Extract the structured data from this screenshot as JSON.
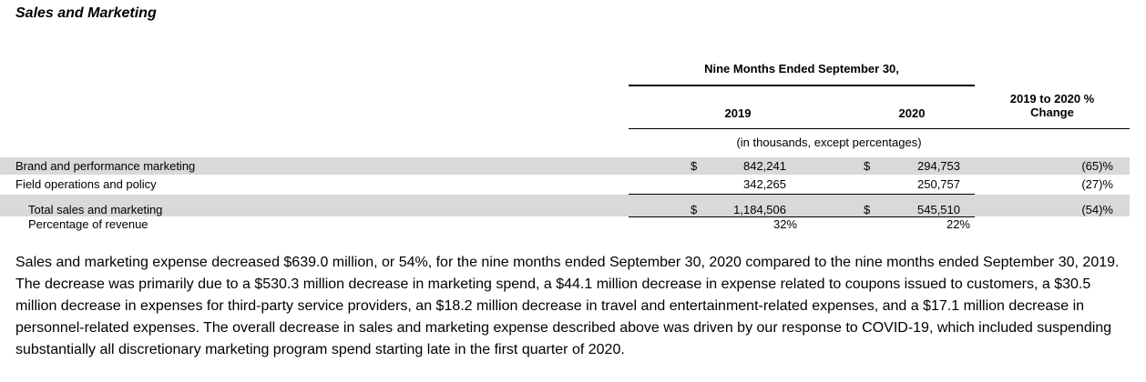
{
  "section": {
    "title": "Sales and Marketing"
  },
  "table": {
    "period_header": "Nine Months Ended September 30,",
    "col_2019": "2019",
    "col_2020": "2020",
    "col_change_line1": "2019 to 2020 %",
    "col_change_line2": "Change",
    "units_note": "(in thousands, except percentages)",
    "rows": [
      {
        "label": "Brand and performance marketing",
        "cur_2019": "$",
        "val_2019": "842,241",
        "cur_2020": "$",
        "val_2020": "294,753",
        "change": "(65)%"
      },
      {
        "label": "Field operations and policy",
        "cur_2019": "",
        "val_2019": "342,265",
        "cur_2020": "",
        "val_2020": "250,757",
        "change": "(27)%"
      },
      {
        "label": "Total sales and marketing",
        "cur_2019": "$",
        "val_2019": "1,184,506",
        "cur_2020": "$",
        "val_2020": "545,510",
        "change": "(54)%"
      },
      {
        "label": "Percentage of revenue",
        "val_2019": "32%",
        "val_2020": "22%"
      }
    ]
  },
  "paragraph": "Sales and marketing expense decreased $639.0 million, or 54%, for the nine months ended September 30, 2020 compared to the nine months ended September 30, 2019. The decrease was primarily due to a $530.3 million decrease in marketing spend, a $44.1 million decrease in expense related to coupons issued to customers, a $30.5 million decrease in expenses for third-party service providers, an $18.2 million decrease in travel and entertainment-related expenses, and a $17.1 million decrease in personnel-related expenses. The overall decrease in sales and marketing expense described above was driven by our response to COVID-19, which included suspending substantially all discretionary marketing program spend starting late in the first quarter of 2020."
}
